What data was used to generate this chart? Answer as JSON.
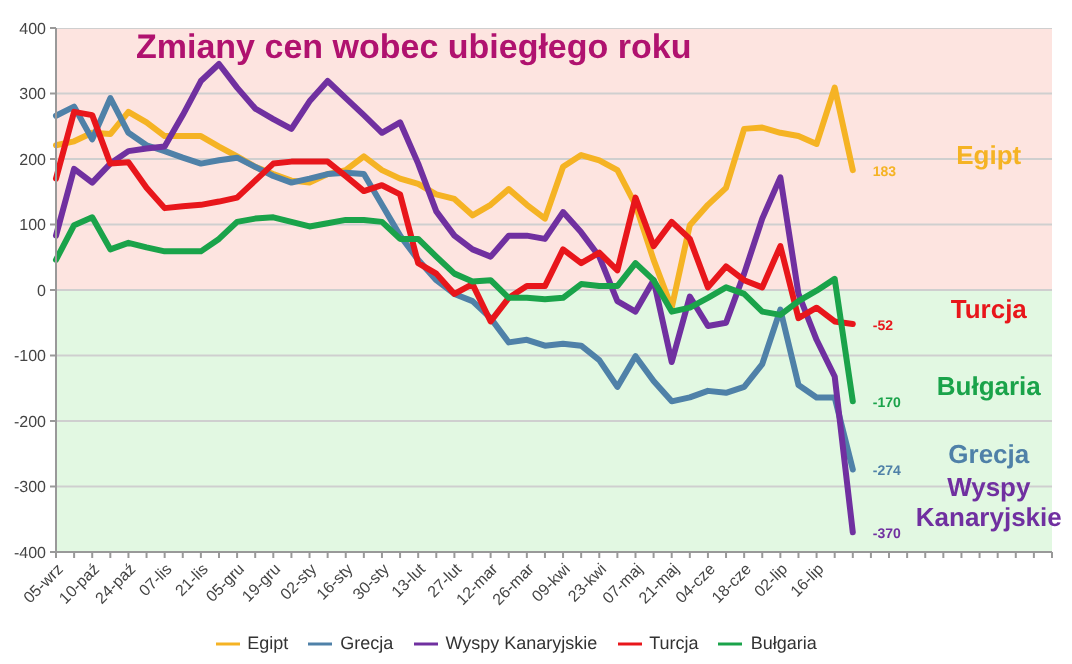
{
  "chart_data": {
    "type": "line",
    "title": "Zmiany cen wobec ubiegłego roku",
    "categories": [
      "05-wrz",
      null,
      "10-paź",
      null,
      "24-paź",
      null,
      "07-lis",
      null,
      "21-lis",
      null,
      "05-gru",
      null,
      "19-gru",
      null,
      "02-sty",
      null,
      "16-sty",
      null,
      "30-sty",
      null,
      "13-lut",
      null,
      "27-lut",
      null,
      "12-mar",
      null,
      "26-mar",
      null,
      "09-kwi",
      null,
      "23-kwi",
      null,
      "07-maj",
      null,
      "21-maj",
      null,
      "04-cze",
      null,
      "18-cze",
      null,
      "02-lip",
      null,
      "16-lip",
      null,
      null,
      null,
      null,
      null,
      null,
      null,
      null,
      null,
      null,
      null,
      null,
      null
    ],
    "series": [
      {
        "name": "Egipt",
        "color": "#f5b324",
        "values": [
          221,
          227,
          240,
          238,
          272,
          256,
          235,
          235,
          235,
          219,
          204,
          188,
          177,
          167,
          164,
          177,
          183,
          204,
          183,
          170,
          162,
          146,
          139,
          114,
          130,
          154,
          130,
          109,
          188,
          206,
          198,
          183,
          130,
          46,
          -27,
          99,
          130,
          156,
          246,
          248,
          240,
          235,
          223,
          309,
          183,
          null,
          null,
          null,
          null,
          null,
          null,
          null,
          null,
          null,
          null,
          null
        ],
        "value_labels": [
          null,
          null,
          null,
          null,
          null,
          null,
          null,
          null,
          null,
          null,
          null,
          null,
          null,
          null,
          null,
          null,
          null,
          null,
          null,
          null,
          null,
          null,
          null,
          null,
          null,
          null,
          null,
          null,
          null,
          null,
          null,
          null,
          null,
          null,
          null,
          null,
          null,
          null,
          null,
          null,
          null,
          null,
          null,
          null,
          "183",
          null,
          null,
          null,
          null,
          null,
          null,
          null,
          null,
          null,
          null,
          null
        ]
      },
      {
        "name": "Grecja",
        "color": "#4f81a8",
        "values": [
          266,
          280,
          230,
          293,
          240,
          221,
          212,
          202,
          193,
          198,
          202,
          188,
          174,
          164,
          170,
          177,
          179,
          177,
          130,
          83,
          46,
          15,
          -6,
          -17,
          -43,
          -80,
          -76,
          -85,
          -82,
          -85,
          -107,
          -148,
          -101,
          -139,
          -170,
          -164,
          -154,
          -157,
          -148,
          -113,
          -30,
          -145,
          -164,
          -164,
          -274,
          null,
          null,
          null,
          null,
          null,
          null,
          null,
          null,
          null,
          null,
          null
        ],
        "value_labels": [
          null,
          null,
          null,
          null,
          null,
          null,
          null,
          null,
          null,
          null,
          null,
          null,
          null,
          null,
          null,
          null,
          null,
          null,
          null,
          null,
          null,
          null,
          null,
          null,
          null,
          null,
          null,
          null,
          null,
          null,
          null,
          null,
          null,
          null,
          null,
          null,
          null,
          null,
          null,
          null,
          null,
          null,
          null,
          null,
          "-274",
          null,
          null,
          null,
          null,
          null,
          null,
          null,
          null,
          null,
          null,
          null
        ]
      },
      {
        "name": "Wyspy Kanaryjskie",
        "color": "#7030a0",
        "values": [
          83,
          185,
          164,
          193,
          212,
          216,
          219,
          267,
          319,
          345,
          309,
          277,
          261,
          246,
          288,
          319,
          293,
          267,
          240,
          256,
          193,
          120,
          83,
          62,
          51,
          83,
          83,
          78,
          119,
          88,
          51,
          -17,
          -33,
          15,
          -110,
          -10,
          -55,
          -50,
          25,
          109,
          172,
          -6,
          -76,
          -132,
          -370,
          null,
          null,
          null,
          null,
          null,
          null,
          null,
          null,
          null,
          null,
          null
        ],
        "value_labels": [
          null,
          null,
          null,
          null,
          null,
          null,
          null,
          null,
          null,
          null,
          null,
          null,
          null,
          null,
          null,
          null,
          null,
          null,
          null,
          null,
          null,
          null,
          null,
          null,
          null,
          null,
          null,
          null,
          null,
          null,
          null,
          null,
          null,
          null,
          null,
          null,
          null,
          null,
          null,
          null,
          null,
          null,
          null,
          null,
          "-370",
          null,
          null,
          null,
          null,
          null,
          null,
          null,
          null,
          null,
          null,
          null
        ]
      },
      {
        "name": "Turcja",
        "color": "#e8161b",
        "values": [
          170,
          272,
          267,
          193,
          195,
          156,
          125,
          128,
          130,
          135,
          141,
          167,
          193,
          196,
          196,
          196,
          174,
          151,
          160,
          146,
          41,
          25,
          -6,
          9,
          -48,
          -12,
          6,
          6,
          62,
          41,
          57,
          30,
          141,
          67,
          104,
          78,
          4,
          36,
          15,
          4,
          67,
          -43,
          -27,
          -48,
          -52,
          null,
          null,
          null,
          null,
          null,
          null,
          null,
          null,
          null,
          null,
          null
        ],
        "value_labels": [
          null,
          null,
          null,
          null,
          null,
          null,
          null,
          null,
          null,
          null,
          null,
          null,
          null,
          null,
          null,
          null,
          null,
          null,
          null,
          null,
          null,
          null,
          null,
          null,
          null,
          null,
          null,
          null,
          null,
          null,
          null,
          null,
          null,
          null,
          null,
          null,
          null,
          null,
          null,
          null,
          null,
          null,
          null,
          null,
          "-52",
          null,
          null,
          null,
          null,
          null,
          null,
          null,
          null,
          null,
          null,
          null
        ]
      },
      {
        "name": "Bułgaria",
        "color": "#1aa34a",
        "values": [
          46,
          99,
          111,
          62,
          72,
          65,
          59,
          59,
          59,
          78,
          104,
          109,
          111,
          104,
          97,
          102,
          107,
          107,
          104,
          78,
          78,
          51,
          25,
          13,
          15,
          -12,
          -12,
          -14,
          -12,
          9,
          6,
          6,
          41,
          15,
          -33,
          -27,
          -12,
          4,
          -6,
          -33,
          -38,
          -17,
          -1,
          17,
          -170,
          null,
          null,
          null,
          null,
          null,
          null,
          null,
          null,
          null,
          null,
          null
        ],
        "value_labels": [
          null,
          null,
          null,
          null,
          null,
          null,
          null,
          null,
          null,
          null,
          null,
          null,
          null,
          null,
          null,
          null,
          null,
          null,
          null,
          null,
          null,
          null,
          null,
          null,
          null,
          null,
          null,
          null,
          null,
          null,
          null,
          null,
          null,
          null,
          null,
          null,
          null,
          null,
          null,
          null,
          null,
          null,
          null,
          null,
          "-170",
          null,
          null,
          null,
          null,
          null,
          null,
          null,
          null,
          null,
          null,
          null
        ]
      }
    ],
    "ylim": [
      -400,
      400
    ],
    "yticks": [
      -400,
      -300,
      -200,
      -100,
      0,
      100,
      200,
      300,
      400
    ],
    "grid": "y",
    "legend": "bottom",
    "bands": [
      {
        "axis": "y",
        "from": 0,
        "to": 400,
        "color": "#fde4e0"
      },
      {
        "axis": "y",
        "from": -400,
        "to": 0,
        "color": "#e2f8e2"
      }
    ]
  }
}
